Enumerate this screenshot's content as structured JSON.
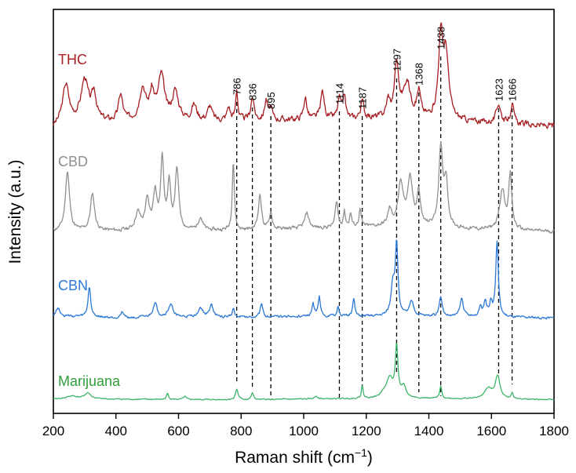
{
  "chart_data": {
    "type": "line",
    "xlabel": "Raman shift (cm",
    "xlabel_sup": "−1",
    "xlabel_close": ")",
    "ylabel": "Intensity (a.u.)",
    "xlim": [
      200,
      1800
    ],
    "xticks": [
      "200",
      "400",
      "600",
      "800",
      "1000",
      "1200",
      "1400",
      "1600",
      "1800"
    ],
    "grid": false,
    "peaks": [
      "786",
      "836",
      "895",
      "1114",
      "1187",
      "1297",
      "1368",
      "1438",
      "1623",
      "1666"
    ],
    "series": [
      {
        "name": "THC",
        "color": "#a61f23",
        "label_color": "#a61f23",
        "baseline": 0.1,
        "noise": 0.9,
        "noise_seed": 3,
        "bg": [
          [
            200,
            0.0
          ],
          [
            230,
            0.5
          ],
          [
            800,
            0.7
          ],
          [
            1300,
            0.9
          ],
          [
            1500,
            0.6
          ],
          [
            1800,
            0.2
          ]
        ],
        "peaks": [
          [
            240,
            3.4,
            12
          ],
          [
            300,
            3.8,
            14
          ],
          [
            330,
            2.4,
            9
          ],
          [
            415,
            2.4,
            8
          ],
          [
            485,
            3.0,
            12
          ],
          [
            515,
            2.3,
            9
          ],
          [
            545,
            4.0,
            12
          ],
          [
            590,
            2.6,
            12
          ],
          [
            650,
            1.4,
            10
          ],
          [
            700,
            1.3,
            8
          ],
          [
            760,
            1.2,
            6
          ],
          [
            786,
            2.8,
            4
          ],
          [
            836,
            2.1,
            6
          ],
          [
            880,
            1.8,
            6
          ],
          [
            895,
            1.0,
            5
          ],
          [
            1005,
            2.0,
            6
          ],
          [
            1060,
            2.5,
            7
          ],
          [
            1114,
            1.8,
            6
          ],
          [
            1130,
            2.1,
            5
          ],
          [
            1187,
            1.6,
            6
          ],
          [
            1270,
            1.5,
            7
          ],
          [
            1297,
            4.8,
            8
          ],
          [
            1330,
            3.2,
            14
          ],
          [
            1368,
            2.3,
            7
          ],
          [
            1438,
            7.2,
            9
          ],
          [
            1455,
            5.5,
            10
          ],
          [
            1623,
            1.8,
            8
          ],
          [
            1666,
            1.8,
            6
          ]
        ]
      },
      {
        "name": "CBD",
        "color": "#909090",
        "label_color": "#909090",
        "baseline": 0.1,
        "noise": 0.55,
        "noise_seed": 11,
        "bg": [
          [
            200,
            0.1
          ],
          [
            800,
            0.2
          ],
          [
            1300,
            0.6
          ],
          [
            1500,
            0.3
          ],
          [
            1800,
            0.1
          ]
        ],
        "peaks": [
          [
            245,
            5.5,
            8
          ],
          [
            325,
            3.4,
            8
          ],
          [
            470,
            1.6,
            10
          ],
          [
            500,
            2.6,
            8
          ],
          [
            525,
            3.4,
            7
          ],
          [
            548,
            6.4,
            6
          ],
          [
            570,
            4.0,
            6
          ],
          [
            595,
            5.4,
            7
          ],
          [
            670,
            1.2,
            8
          ],
          [
            775,
            6.4,
            4
          ],
          [
            860,
            3.2,
            6
          ],
          [
            895,
            1.6,
            5
          ],
          [
            1010,
            1.4,
            8
          ],
          [
            1105,
            2.4,
            5
          ],
          [
            1130,
            1.4,
            4
          ],
          [
            1150,
            1.2,
            4
          ],
          [
            1180,
            1.6,
            4
          ],
          [
            1275,
            1.4,
            7
          ],
          [
            1310,
            3.6,
            10
          ],
          [
            1340,
            4.2,
            10
          ],
          [
            1368,
            3.0,
            6
          ],
          [
            1438,
            7.0,
            8
          ],
          [
            1455,
            4.0,
            7
          ],
          [
            1635,
            3.6,
            10
          ],
          [
            1660,
            4.8,
            6
          ]
        ]
      },
      {
        "name": "CBN",
        "color": "#2b78d6",
        "label_color": "#2b78d6",
        "baseline": 0.15,
        "noise": 0.4,
        "noise_seed": 27,
        "bg": [
          [
            200,
            0.4
          ],
          [
            400,
            0.2
          ],
          [
            1300,
            0.4
          ],
          [
            1800,
            0.2
          ]
        ],
        "peaks": [
          [
            215,
            0.8,
            8
          ],
          [
            315,
            3.0,
            5
          ],
          [
            420,
            0.6,
            6
          ],
          [
            525,
            1.4,
            8
          ],
          [
            575,
            1.2,
            10
          ],
          [
            670,
            0.9,
            10
          ],
          [
            705,
            1.3,
            6
          ],
          [
            775,
            0.9,
            4
          ],
          [
            865,
            1.2,
            5
          ],
          [
            1050,
            2.0,
            4
          ],
          [
            1030,
            1.3,
            4
          ],
          [
            1110,
            1.0,
            4
          ],
          [
            1160,
            1.7,
            4
          ],
          [
            1285,
            3.0,
            7
          ],
          [
            1297,
            6.8,
            5
          ],
          [
            1345,
            1.4,
            8
          ],
          [
            1438,
            1.8,
            6
          ],
          [
            1505,
            1.8,
            6
          ],
          [
            1565,
            1.0,
            5
          ],
          [
            1580,
            1.5,
            5
          ],
          [
            1598,
            1.3,
            5
          ],
          [
            1618,
            7.4,
            5
          ]
        ]
      },
      {
        "name": "Marijuana",
        "color": "#3db46a",
        "label_color": "#2f9e3a",
        "baseline": 0.05,
        "noise": 0.25,
        "noise_seed": 41,
        "bg": [
          [
            200,
            0.3
          ],
          [
            800,
            0.2
          ],
          [
            1300,
            0.4
          ],
          [
            1800,
            0.2
          ]
        ],
        "peaks": [
          [
            260,
            0.4,
            20
          ],
          [
            310,
            0.8,
            12
          ],
          [
            565,
            0.8,
            4
          ],
          [
            620,
            0.4,
            5
          ],
          [
            786,
            1.4,
            5
          ],
          [
            836,
            0.9,
            4
          ],
          [
            1040,
            0.4,
            6
          ],
          [
            1187,
            1.8,
            3
          ],
          [
            1255,
            0.6,
            10
          ],
          [
            1275,
            2.6,
            12
          ],
          [
            1297,
            6.8,
            5
          ],
          [
            1320,
            1.5,
            8
          ],
          [
            1438,
            1.6,
            4
          ],
          [
            1590,
            1.4,
            14
          ],
          [
            1620,
            3.0,
            9
          ],
          [
            1666,
            0.8,
            4
          ]
        ]
      }
    ]
  }
}
